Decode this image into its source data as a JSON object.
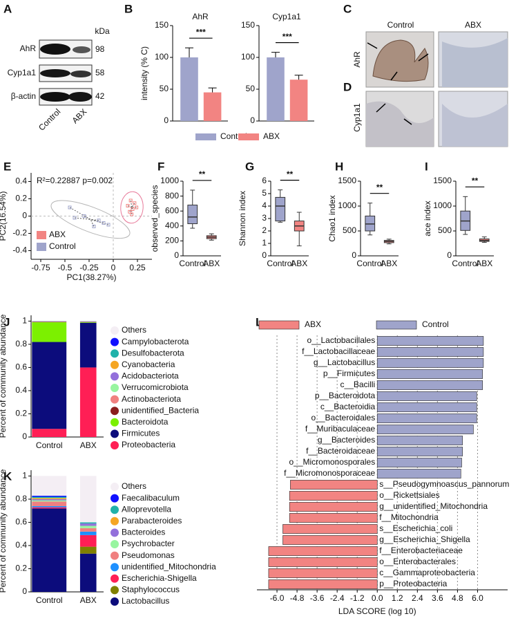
{
  "panel_letters": [
    "A",
    "B",
    "C",
    "D",
    "E",
    "F",
    "G",
    "H",
    "I",
    "J",
    "K",
    "L"
  ],
  "blot": {
    "unit": "kDa",
    "rows": [
      {
        "label": "AhR",
        "kda": 98
      },
      {
        "label": "Cyp1a1",
        "kda": 58
      },
      {
        "label": "β-actin",
        "kda": 42
      }
    ],
    "lanes": [
      "Control",
      "ABX"
    ]
  },
  "histology": {
    "columns": [
      "Control",
      "ABX"
    ],
    "rows": [
      "AhR",
      "Cyp1a1"
    ]
  },
  "chart_data": [
    {
      "type": "bar",
      "title": "AhR",
      "y_label": "intensity (% C)",
      "categories": [
        null
      ],
      "legend": true,
      "series": [
        {
          "name": "Control",
          "color": "#9fa4cb",
          "values": [
            100
          ],
          "errors": [
            15
          ]
        },
        {
          "name": "ABX",
          "color": "#f28482",
          "values": [
            45
          ],
          "errors": [
            7
          ]
        }
      ],
      "significance": "***",
      "ylim": [
        0,
        150
      ],
      "yticks": [
        0,
        50,
        100,
        150
      ]
    },
    {
      "type": "bar",
      "title": "Cyp1a1",
      "categories": [
        null
      ],
      "series": [
        {
          "color": "#9fa4cb",
          "values": [
            100
          ],
          "errors": [
            8
          ]
        },
        {
          "color": "#f28482",
          "values": [
            65
          ],
          "errors": [
            7
          ]
        }
      ],
      "significance": "***",
      "ylim": [
        0,
        150
      ],
      "yticks": [
        0,
        50,
        100,
        150
      ]
    },
    {
      "type": "scatter",
      "annotation": "R²=0.22887 p=0.002",
      "x_label": "PC1(38.27%)",
      "y_label": "PC2(16.54%)",
      "series": [
        {
          "name": "ABX",
          "color": "#f28482",
          "ellipse_color": "#e87a9a",
          "x": [
            0.15,
            0.18,
            0.2,
            0.22,
            0.17,
            0.19,
            0.24
          ],
          "y": [
            0.12,
            0.18,
            0.08,
            0.15,
            0.05,
            0.02,
            0.1
          ]
        },
        {
          "name": "Control",
          "color": "#9fa4cb",
          "ellipse_color": "#b5b5b5",
          "x": [
            -0.45,
            -0.4,
            -0.15,
            -0.1,
            -0.05,
            -0.3,
            -0.2
          ],
          "y": [
            0.1,
            -0.02,
            -0.05,
            -0.08,
            -0.1,
            0.0,
            -0.12
          ]
        }
      ],
      "xlim": [
        -0.85,
        0.4
      ],
      "xticks": [
        -0.75,
        -0.5,
        -0.25,
        0,
        0.25
      ],
      "ylim": [
        -0.5,
        0.5
      ],
      "yticks": [
        -0.4,
        -0.2,
        0,
        0.2,
        0.4
      ]
    },
    {
      "type": "box",
      "y_label": "observed_species",
      "categories": [
        "Control",
        "ABX"
      ],
      "colors": [
        "#9fa4cb",
        "#f28482"
      ],
      "boxes": [
        {
          "min": 370,
          "q1": 430,
          "median": 520,
          "q3": 680,
          "max": 880
        },
        {
          "min": 210,
          "q1": 230,
          "median": 250,
          "q3": 270,
          "max": 295
        }
      ],
      "significance": "**",
      "ylim": [
        0,
        1000
      ],
      "yticks": [
        0,
        200,
        400,
        600,
        800,
        1000
      ]
    },
    {
      "type": "box",
      "y_label": "Shannon index",
      "categories": [
        "Control",
        "ABX"
      ],
      "colors": [
        "#9fa4cb",
        "#f28482"
      ],
      "boxes": [
        {
          "min": 2.7,
          "q1": 2.8,
          "median": 4.0,
          "q3": 4.7,
          "max": 5.3
        },
        {
          "min": 0.8,
          "q1": 2.0,
          "median": 2.4,
          "q3": 2.8,
          "max": 3.5
        }
      ],
      "significance": "**",
      "ylim": [
        0,
        6
      ],
      "yticks": [
        0,
        1,
        2,
        3,
        4,
        5,
        6
      ]
    },
    {
      "type": "box",
      "y_label": "Chao1 index",
      "categories": [
        "Control",
        "ABX"
      ],
      "colors": [
        "#9fa4cb",
        "#f28482"
      ],
      "boxes": [
        {
          "min": 420,
          "q1": 500,
          "median": 640,
          "q3": 800,
          "max": 1060
        },
        {
          "min": 240,
          "q1": 265,
          "median": 290,
          "q3": 310,
          "max": 335
        }
      ],
      "significance": "**",
      "ylim": [
        0,
        1500
      ],
      "yticks": [
        0,
        500,
        1000,
        1500
      ]
    },
    {
      "type": "box",
      "y_label": "ace index",
      "categories": [
        "Control",
        "ABX"
      ],
      "colors": [
        "#9fa4cb",
        "#f28482"
      ],
      "boxes": [
        {
          "min": 430,
          "q1": 510,
          "median": 700,
          "q3": 900,
          "max": 1190
        },
        {
          "min": 270,
          "q1": 290,
          "median": 310,
          "q3": 340,
          "max": 380
        }
      ],
      "significance": "**",
      "ylim": [
        0,
        1500
      ],
      "yticks": [
        0,
        500,
        1000,
        1500
      ]
    },
    {
      "type": "stacked",
      "y_label": "Percent of community abundance",
      "categories": [
        "Control",
        "ABX"
      ],
      "series": [
        {
          "name": "Proteobacteria",
          "color": "#ff1f55",
          "values": [
            0.07,
            0.6
          ]
        },
        {
          "name": "Firmicutes",
          "color": "#0c0c7c",
          "values": [
            0.75,
            0.386
          ]
        },
        {
          "name": "Bacteroidota",
          "color": "#7cf000",
          "values": [
            0.17,
            0.005
          ]
        },
        {
          "name": "unidentified_Bacteria",
          "color": "#8b1d1d",
          "values": [
            0.003,
            0.002
          ]
        },
        {
          "name": "Actinobacteriota",
          "color": "#f08080",
          "values": [
            0.002,
            0.001
          ]
        },
        {
          "name": "Verrucomicrobiota",
          "color": "#98f5a0",
          "values": [
            0.001,
            0.001
          ]
        },
        {
          "name": "Acidobacteriota",
          "color": "#9370db",
          "values": [
            0.001,
            0.001
          ]
        },
        {
          "name": "Cyanobacteria",
          "color": "#f5a623",
          "values": [
            0.001,
            0.001
          ]
        },
        {
          "name": "Desulfobacterota",
          "color": "#20b2aa",
          "values": [
            0.001,
            0.001
          ]
        },
        {
          "name": "Campylobacterota",
          "color": "#1010ff",
          "values": [
            0.001,
            0.001
          ]
        },
        {
          "name": "Others",
          "color": "#f4eef4",
          "values": [
            0.001,
            0.001
          ]
        }
      ],
      "ylim": [
        0,
        1.05
      ],
      "yticks": [
        0,
        0.2,
        0.4,
        0.6,
        0.8,
        1
      ]
    },
    {
      "type": "stacked",
      "y_label": "Percent of community abundance",
      "categories": [
        "Control",
        "ABX"
      ],
      "series": [
        {
          "name": "Lactobacillus",
          "color": "#0c0c7c",
          "values": [
            0.72,
            0.33
          ]
        },
        {
          "name": "Staphylococcus",
          "color": "#808000",
          "values": [
            0,
            0.06
          ]
        },
        {
          "name": "Escherichia-Shigella",
          "color": "#ff1f55",
          "values": [
            0.01,
            0.1
          ]
        },
        {
          "name": "unidentified_Mitochondria",
          "color": "#1e90ff",
          "values": [
            0.01,
            0.03
          ]
        },
        {
          "name": "Pseudomonas",
          "color": "#f08080",
          "values": [
            0.04,
            0.03
          ]
        },
        {
          "name": "Psychrobacter",
          "color": "#98f5a0",
          "values": [
            0.01,
            0.02
          ]
        },
        {
          "name": "Bacteroides",
          "color": "#9370db",
          "values": [
            0.01,
            0.02
          ]
        },
        {
          "name": "Parabacteroides",
          "color": "#f5a623",
          "values": [
            0.01,
            0
          ]
        },
        {
          "name": "Alloprevotella",
          "color": "#20b2aa",
          "values": [
            0.01,
            0.01
          ]
        },
        {
          "name": "Faecalibaculum",
          "color": "#1010ff",
          "values": [
            0.01,
            0
          ]
        },
        {
          "name": "Others",
          "color": "#f4eef4",
          "values": [
            0.17,
            0.4
          ]
        }
      ],
      "ylim": [
        0,
        1.05
      ],
      "yticks": [
        0,
        0.2,
        0.4,
        0.6,
        0.8,
        1
      ]
    },
    {
      "type": "hbar",
      "x_label": "LDA SCORE (log 10)",
      "grid": true,
      "categories": [
        "o__Lactobacillales",
        "f__Lactobacillaceae",
        "g__Lactobacillus",
        "p__Firmicutes",
        "c__Bacilli",
        "p__Bacteroidota",
        "c__Bacteroidia",
        "o__Bacteroidales",
        "f__Muribaculaceae",
        "g__Bacteroides",
        "f__Bacteroidaceae",
        "o__Micromonosporales",
        "f__Micromonosporaceae",
        "s__Pseudogymnoascus_pannorum",
        "o__Rickettsiales",
        "g__unidentified_Mitochondria",
        "f__Mitochondria",
        "s__Escherichia_coli",
        "g__Escherichia_Shigella",
        "f__Enterobacteriaceae",
        "o__Enterobacterales",
        "c__Gammaproteobacteria",
        "p__Proteobacteria"
      ],
      "series": [
        {
          "name": "ABX",
          "color": "#f28482",
          "values": [
            null,
            null,
            null,
            null,
            null,
            null,
            null,
            null,
            null,
            null,
            null,
            null,
            null,
            -5.2,
            -5.25,
            -5.25,
            -5.25,
            -5.65,
            -5.65,
            -6.5,
            -6.5,
            -6.5,
            -6.5
          ]
        },
        {
          "name": "Control",
          "color": "#9fa4cb",
          "values": [
            6.35,
            6.35,
            6.35,
            6.3,
            6.3,
            5.95,
            5.95,
            5.95,
            5.75,
            5.1,
            5.1,
            5.05,
            5.0,
            null,
            null,
            null,
            null,
            null,
            null,
            null,
            null,
            null,
            null
          ]
        }
      ],
      "xlim": [
        -7.2,
        7.8
      ],
      "xticks": [
        {
          "value": -6,
          "label": "-6.0"
        },
        {
          "value": -4.8,
          "label": "-4.8"
        },
        {
          "value": -3.6,
          "label": "-3.6"
        },
        {
          "value": -2.4,
          "label": "-2.4"
        },
        {
          "value": -1.2,
          "label": "-1.2"
        },
        {
          "value": 0,
          "label": "0.0"
        },
        1.2,
        2.4,
        3.6,
        4.8,
        {
          "value": 6,
          "label": "6.0"
        }
      ]
    }
  ]
}
